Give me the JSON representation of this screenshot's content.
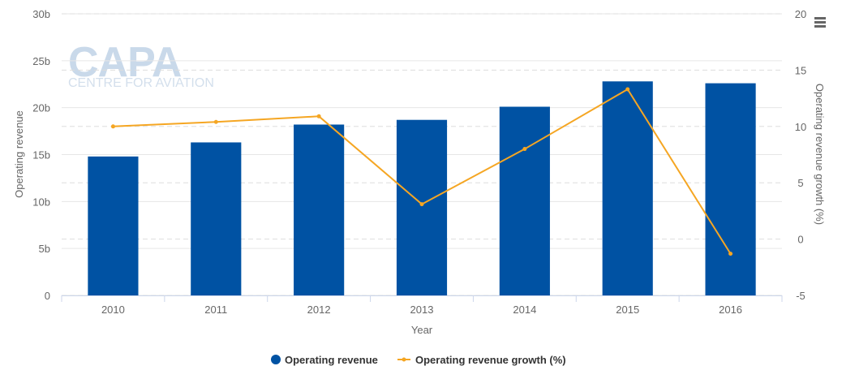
{
  "watermark": {
    "main": "CAPA",
    "sub": "CENTRE FOR AVIATION"
  },
  "menu": {
    "icon": "hamburger-menu-icon"
  },
  "colors": {
    "bar": "#0052a3",
    "line": "#f5a623",
    "grid": "#e6e6e6",
    "altgrid": "#dddddd"
  },
  "chart_data": {
    "type": "bar",
    "categories": [
      "2010",
      "2011",
      "2012",
      "2013",
      "2014",
      "2015",
      "2016"
    ],
    "series": [
      {
        "name": "Operating revenue",
        "type": "bar",
        "axis": "left",
        "values": [
          14.8,
          16.3,
          18.2,
          18.7,
          20.1,
          22.8,
          22.6
        ]
      },
      {
        "name": "Operating revenue growth (%)",
        "type": "line",
        "axis": "right",
        "values": [
          10.0,
          10.4,
          10.9,
          3.1,
          8.0,
          13.3,
          -1.3
        ]
      }
    ],
    "xlabel": "Year",
    "ylabel": "Operating revenue",
    "y2label": "Operating revenue growth (%)",
    "ylim": [
      0,
      30
    ],
    "y2lim": [
      -5,
      20
    ],
    "yticks": [
      "0",
      "5b",
      "10b",
      "15b",
      "20b",
      "25b",
      "30b"
    ],
    "y2ticks": [
      "-5",
      "0",
      "5",
      "10",
      "15",
      "20"
    ],
    "grid": true,
    "legend": "bottom-center"
  }
}
